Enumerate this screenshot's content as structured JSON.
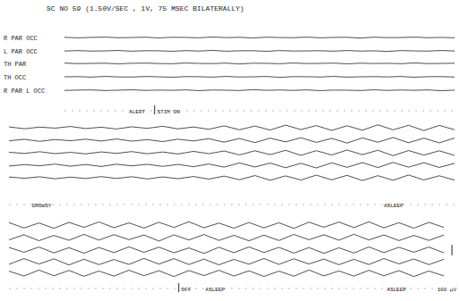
{
  "chart_data": {
    "type": "line",
    "title": "SC NO 59 (1.50V/SEC , 1V, 75 MSEC BILATERALLY)",
    "channels": [
      "R PAR OCC",
      "L PAR OCC",
      "TH PAR",
      "TH OCC",
      "R PAR L OCC"
    ],
    "color": "#222222",
    "tick_labels": false,
    "ylim": [
      -60,
      60
    ],
    "calibration": {
      "value": 100,
      "label": "100 µV"
    },
    "panels": [
      {
        "xlim": [
          0,
          29
        ],
        "series": [
          {
            "values": [
              2,
              -3,
              1,
              4,
              -2,
              0,
              3,
              -4,
              2,
              1,
              -3,
              5,
              -1,
              2,
              -4,
              3,
              0,
              -2,
              4,
              -3,
              1,
              2,
              -5,
              3,
              -1,
              0,
              4,
              -2,
              1,
              -3
            ]
          },
          {
            "values": [
              -1,
              3,
              -2,
              0,
              4,
              -3,
              2,
              1,
              -4,
              3,
              -2,
              5,
              -3,
              1,
              2,
              -4,
              3,
              -1,
              0,
              2,
              -3,
              4,
              -2,
              1,
              -5,
              3,
              0,
              -2,
              4,
              -1
            ]
          },
          {
            "values": [
              3,
              -2,
              0,
              2,
              -4,
              1,
              3,
              -1,
              -3,
              4,
              0,
              -2,
              3,
              -5,
              2,
              1,
              -3,
              4,
              -1,
              0,
              3,
              -4,
              2,
              -1,
              1,
              -3,
              5,
              -2,
              0,
              2
            ]
          },
          {
            "values": [
              0,
              2,
              -3,
              4,
              -1,
              -2,
              3,
              0,
              -4,
              2,
              1,
              -3,
              4,
              -2,
              0,
              3,
              -5,
              2,
              1,
              -2,
              4,
              -3,
              0,
              2,
              -1,
              3,
              -4,
              1,
              2,
              -2
            ]
          },
          {
            "values": [
              -2,
              1,
              3,
              -3,
              0,
              4,
              -2,
              1,
              -1,
              3,
              -4,
              2,
              0,
              -3,
              5,
              -1,
              2,
              -2,
              3,
              -4,
              1,
              0,
              -3,
              4,
              -2,
              2,
              -1,
              3,
              -5,
              1
            ]
          }
        ],
        "annotations": [
          {
            "text": "ALERT",
            "x": 4.8
          },
          {
            "text": "STIM ON",
            "x": 6.9,
            "marker": "line"
          }
        ]
      },
      {
        "xlim": [
          0,
          29
        ],
        "series": [
          {
            "values": [
              8,
              -10,
              6,
              -4,
              12,
              -8,
              5,
              -12,
              9,
              -6,
              14,
              -11,
              7,
              -15,
              18,
              -20,
              16,
              -22,
              25,
              -18,
              21,
              -26,
              19,
              -24,
              28,
              -20,
              23,
              -27,
              22,
              -19
            ]
          },
          {
            "values": [
              -6,
              9,
              -11,
              7,
              -5,
              10,
              -8,
              12,
              -9,
              6,
              -13,
              10,
              -7,
              15,
              -19,
              17,
              -23,
              20,
              -16,
              24,
              -21,
              18,
              -27,
              22,
              -19,
              26,
              -24,
              20,
              -25,
              21
            ]
          },
          {
            "values": [
              5,
              -7,
              10,
              -9,
              4,
              -11,
              8,
              -6,
              11,
              -10,
              7,
              -12,
              13,
              -9,
              17,
              -21,
              19,
              -18,
              23,
              -25,
              20,
              -22,
              26,
              -19,
              24,
              -28,
              21,
              -23,
              19,
              -26
            ]
          },
          {
            "values": [
              -8,
              6,
              -5,
              11,
              -9,
              7,
              -12,
              10,
              -6,
              9,
              -11,
              8,
              -14,
              12,
              -18,
              22,
              -17,
              21,
              -24,
              19,
              -26,
              23,
              -20,
              25,
              -22,
              27,
              -19,
              24,
              -21,
              18
            ]
          },
          {
            "values": [
              7,
              -5,
              9,
              -10,
              6,
              -8,
              11,
              -7,
              10,
              -12,
              8,
              -9,
              12,
              -13,
              16,
              -19,
              21,
              -24,
              18,
              -22,
              25,
              -20,
              23,
              -27,
              20,
              -24,
              26,
              -21,
              19,
              -23
            ]
          }
        ],
        "annotations": [
          {
            "text": "DROWSY",
            "x": 1.5
          },
          {
            "text": "ASLEEP",
            "x": 24.4
          }
        ]
      },
      {
        "xlim": [
          0,
          29
        ],
        "series": [
          {
            "values": [
              24,
              -28,
              20,
              -31,
              26,
              -22,
              30,
              -25,
              21,
              -29,
              27,
              -23,
              32,
              -26,
              19,
              -30,
              25,
              -27,
              22,
              -32,
              28,
              -21,
              29,
              -24,
              31,
              -27,
              23,
              -30,
              26,
              -22
            ]
          },
          {
            "values": [
              -22,
              27,
              -30,
              21,
              -26,
              31,
              -24,
              28,
              -20,
              25,
              -33,
              26,
              -23,
              29,
              -27,
              22,
              -31,
              24,
              -28,
              30,
              -21,
              27,
              -25,
              32,
              -23,
              26,
              -29,
              21,
              -27,
              25
            ]
          },
          {
            "values": [
              26,
              -21,
              29,
              -27,
              23,
              -30,
              25,
              -24,
              31,
              -22,
              28,
              -26,
              21,
              -32,
              27,
              -25,
              30,
              -23,
              26,
              -29,
              24,
              -31,
              22,
              -28,
              30,
              -24,
              27,
              -21,
              29,
              -26
            ]
          },
          {
            "values": [
              -25,
              30,
              -22,
              27,
              -31,
              24,
              -28,
              21,
              -26,
              32,
              -23,
              29,
              -27,
              25,
              -30,
              22,
              -24,
              31,
              -26,
              28,
              -22,
              25,
              -29,
              23,
              -27,
              30,
              -21,
              26,
              -28,
              24
            ]
          },
          {
            "values": [
              21,
              -26,
              31,
              -24,
              28,
              -29,
              22,
              -27,
              30,
              -23,
              25,
              -31,
              27,
              -22,
              29,
              -26,
              24,
              -30,
              21,
              -28,
              32,
              -25,
              23,
              -27,
              29,
              -24,
              26,
              -31,
              22,
              -25
            ]
          }
        ],
        "annotations": [
          {
            "text": "OFF",
            "x": 11.5,
            "marker": "line"
          },
          {
            "text": "ASLEEP",
            "x": 13.1
          },
          {
            "text": "ASLEEP",
            "x": 25.2
          }
        ]
      }
    ]
  }
}
